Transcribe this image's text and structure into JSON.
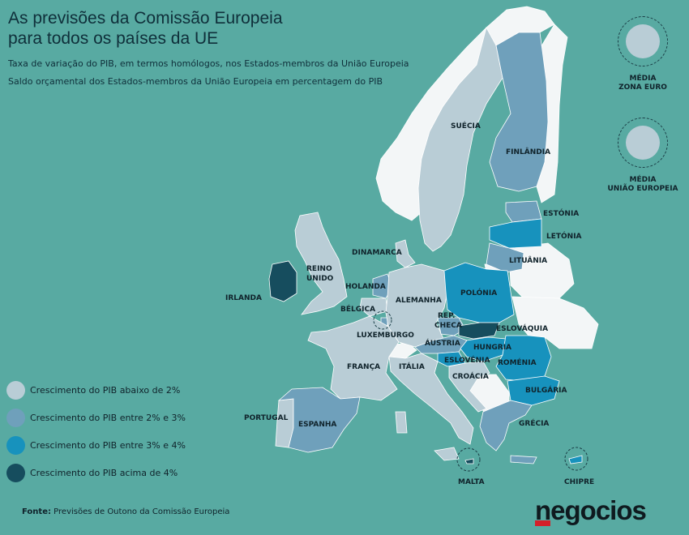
{
  "title": {
    "line1": "As previsões da Comissão Europeia",
    "line2": "para todos os países da UE"
  },
  "subtitles": [
    "Taxa de variação do PIB, em termos homólogos, nos Estados-membros da União Europeia",
    "Saldo orçamental dos Estados-membros da União Europeia em percentagem do PIB"
  ],
  "colors": {
    "sea": "#58aaa2",
    "non_eu_land": "#f3f6f7",
    "below_2": "#b9cdd6",
    "between_2_3": "#6fa0bb",
    "between_3_4": "#1792bd",
    "above_4": "#164d5e"
  },
  "legend": [
    {
      "category": "below_2",
      "label": "Crescimento do PIB abaixo de 2%"
    },
    {
      "category": "between_2_3",
      "label": "Crescimento do PIB entre 2% e 3%"
    },
    {
      "category": "between_3_4",
      "label": "Crescimento do PIB entre 3% e 4%"
    },
    {
      "category": "above_4",
      "label": "Crescimento do PIB acima de 4%"
    }
  ],
  "badges": {
    "euro_zone": {
      "line1": "MÉDIA",
      "line2": "ZONA EURO",
      "category": "below_2"
    },
    "eu": {
      "line1": "MÉDIA",
      "line2": "UNIÃO EUROPEIA",
      "category": "below_2"
    }
  },
  "countries": [
    {
      "id": "sweden",
      "label": "SUÉCIA",
      "category": "below_2"
    },
    {
      "id": "finland",
      "label": "FINLÂNDIA",
      "category": "between_2_3"
    },
    {
      "id": "estonia",
      "label": "ESTÓNIA",
      "category": "between_2_3"
    },
    {
      "id": "latvia",
      "label": "LETÓNIA",
      "category": "between_3_4"
    },
    {
      "id": "lithuania",
      "label": "LITUÂNIA",
      "category": "between_2_3"
    },
    {
      "id": "denmark",
      "label": "DINAMARCA",
      "category": "below_2"
    },
    {
      "id": "ireland",
      "label": "IRLANDA",
      "category": "above_4"
    },
    {
      "id": "uk",
      "label": "REINO UNIDO",
      "category": "below_2"
    },
    {
      "id": "netherlands",
      "label": "HOLANDA",
      "category": "between_2_3"
    },
    {
      "id": "belgium",
      "label": "BÉLGICA",
      "category": "below_2"
    },
    {
      "id": "luxembourg",
      "label": "LUXEMBURGO",
      "category": "between_2_3"
    },
    {
      "id": "germany",
      "label": "ALEMANHA",
      "category": "below_2"
    },
    {
      "id": "poland",
      "label": "POLÓNIA",
      "category": "between_3_4"
    },
    {
      "id": "czechia",
      "label": "REP. CHECA",
      "category": "between_2_3"
    },
    {
      "id": "slovakia",
      "label": "ESLOVÁQUIA",
      "category": "above_4"
    },
    {
      "id": "austria",
      "label": "ÁUSTRIA",
      "category": "between_2_3"
    },
    {
      "id": "hungary",
      "label": "HUNGRIA",
      "category": "between_3_4"
    },
    {
      "id": "slovenia",
      "label": "ESLOVÉNIA",
      "category": "between_3_4"
    },
    {
      "id": "croatia",
      "label": "CROÁCIA",
      "category": "below_2"
    },
    {
      "id": "romania",
      "label": "ROMÉNIA",
      "category": "between_3_4"
    },
    {
      "id": "bulgaria",
      "label": "BULGÁRIA",
      "category": "between_3_4"
    },
    {
      "id": "france",
      "label": "FRANÇA",
      "category": "below_2"
    },
    {
      "id": "italy",
      "label": "ITÁLIA",
      "category": "below_2"
    },
    {
      "id": "portugal",
      "label": "PORTUGAL",
      "category": "below_2"
    },
    {
      "id": "spain",
      "label": "ESPANHA",
      "category": "between_2_3"
    },
    {
      "id": "greece",
      "label": "GRÉCIA",
      "category": "between_2_3"
    },
    {
      "id": "malta",
      "label": "MALTA",
      "category": "above_4"
    },
    {
      "id": "cyprus",
      "label": "CHIPRE",
      "category": "between_3_4"
    }
  ],
  "source": {
    "prefix": "Fonte:",
    "text": "Previsões de Outono da Comissão Europeia"
  },
  "logo": "negocios"
}
